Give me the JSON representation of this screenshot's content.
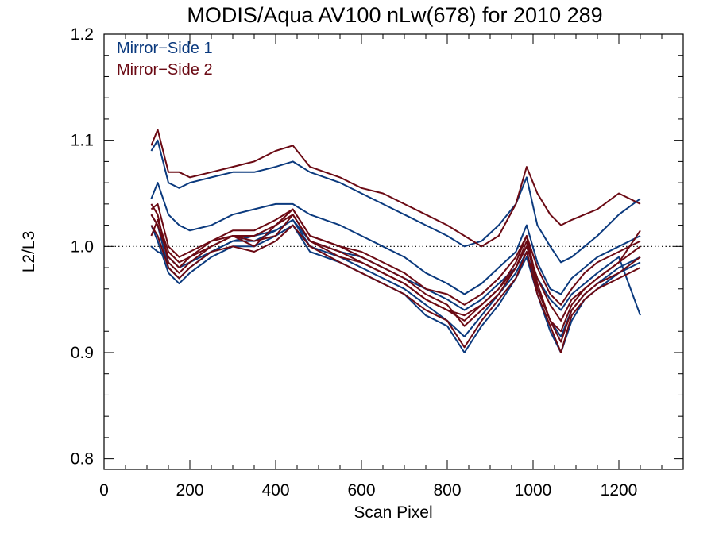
{
  "chart_data": {
    "type": "line",
    "title": "MODIS/Aqua AV100 nLw(678) for 2010 289",
    "xlabel": "Scan Pixel",
    "ylabel": "L2/L3",
    "xlim": [
      0,
      1350
    ],
    "ylim": [
      0.79,
      1.2
    ],
    "x_ticks": [
      {
        "v": 0,
        "label": "0"
      },
      {
        "v": 200,
        "label": "200"
      },
      {
        "v": 400,
        "label": "400"
      },
      {
        "v": 600,
        "label": "600"
      },
      {
        "v": 800,
        "label": "800"
      },
      {
        "v": 1000,
        "label": "1000"
      },
      {
        "v": 1200,
        "label": "1200"
      }
    ],
    "y_ticks": [
      {
        "v": 0.8,
        "label": "0.8"
      },
      {
        "v": 0.9,
        "label": "0.9"
      },
      {
        "v": 1.0,
        "label": "1.0"
      },
      {
        "v": 1.1,
        "label": "1.1"
      },
      {
        "v": 1.2,
        "label": "1.2"
      }
    ],
    "reference_line": {
      "y": 1.0,
      "style": "dotted"
    },
    "legend_position": "top-left",
    "x": [
      110,
      125,
      150,
      175,
      200,
      250,
      300,
      350,
      400,
      440,
      480,
      550,
      600,
      650,
      700,
      750,
      800,
      840,
      880,
      920,
      960,
      985,
      1010,
      1040,
      1065,
      1090,
      1120,
      1150,
      1200,
      1250
    ],
    "series": [
      {
        "name": "Mirror−Side 1",
        "color": "#0b3a7e",
        "lines": [
          [
            1.09,
            1.1,
            1.06,
            1.055,
            1.06,
            1.065,
            1.07,
            1.07,
            1.075,
            1.08,
            1.07,
            1.06,
            1.05,
            1.04,
            1.03,
            1.02,
            1.01,
            1.0,
            1.005,
            1.02,
            1.04,
            1.065,
            1.02,
            1.0,
            0.985,
            0.99,
            1.0,
            1.01,
            1.03,
            1.045
          ],
          [
            1.045,
            1.06,
            1.03,
            1.02,
            1.015,
            1.02,
            1.03,
            1.035,
            1.04,
            1.04,
            1.03,
            1.02,
            1.01,
            1.0,
            0.99,
            0.975,
            0.965,
            0.955,
            0.965,
            0.98,
            0.995,
            1.02,
            0.985,
            0.96,
            0.955,
            0.97,
            0.98,
            0.99,
            1.0,
            1.01
          ],
          [
            1.03,
            1.02,
            0.98,
            0.97,
            0.98,
            0.995,
            1.005,
            1.005,
            1.015,
            1.025,
            1.0,
            0.99,
            0.98,
            0.97,
            0.96,
            0.945,
            0.93,
            0.915,
            0.935,
            0.955,
            0.975,
            0.995,
            0.96,
            0.93,
            0.915,
            0.94,
            0.955,
            0.965,
            0.98,
            0.99
          ],
          [
            1.02,
            1.005,
            0.975,
            0.965,
            0.975,
            0.99,
            1.0,
            1.0,
            1.01,
            1.02,
            0.995,
            0.985,
            0.975,
            0.965,
            0.955,
            0.935,
            0.925,
            0.9,
            0.925,
            0.945,
            0.97,
            0.99,
            0.955,
            0.92,
            0.9,
            0.93,
            0.95,
            0.96,
            0.975,
            0.985
          ],
          [
            1.0,
            0.995,
            0.99,
            0.98,
            0.985,
            0.995,
            1.005,
            1.01,
            1.015,
            1.025,
            1.005,
            0.995,
            0.99,
            0.98,
            0.97,
            0.96,
            0.95,
            0.94,
            0.95,
            0.965,
            0.98,
            1.0,
            0.97,
            0.95,
            0.94,
            0.955,
            0.965,
            0.975,
            0.99,
            0.935
          ]
        ]
      },
      {
        "name": "Mirror−Side 2",
        "color": "#6b0a14",
        "lines": [
          [
            1.095,
            1.11,
            1.07,
            1.07,
            1.065,
            1.07,
            1.075,
            1.08,
            1.09,
            1.095,
            1.075,
            1.065,
            1.055,
            1.05,
            1.04,
            1.03,
            1.02,
            1.01,
            1.0,
            1.01,
            1.04,
            1.075,
            1.05,
            1.03,
            1.02,
            1.025,
            1.03,
            1.035,
            1.05,
            1.04
          ],
          [
            1.04,
            1.03,
            0.985,
            0.975,
            0.985,
            1.0,
            1.01,
            1.005,
            1.01,
            1.03,
            1.005,
            0.99,
            0.985,
            0.975,
            0.965,
            0.95,
            0.94,
            0.935,
            0.945,
            0.96,
            0.985,
            1.01,
            0.965,
            0.93,
            0.92,
            0.945,
            0.96,
            0.97,
            0.985,
            1.0
          ],
          [
            1.03,
            1.02,
            0.99,
            0.98,
            0.99,
            1.005,
            1.01,
            1.0,
            1.02,
            1.035,
            1.01,
            1.0,
            0.99,
            0.98,
            0.97,
            0.955,
            0.945,
            0.925,
            0.94,
            0.955,
            0.98,
            1.005,
            0.96,
            0.93,
            0.91,
            0.94,
            0.955,
            0.965,
            0.975,
            0.99
          ],
          [
            1.02,
            1.01,
            0.98,
            0.97,
            0.98,
            0.995,
            1.0,
            0.995,
            1.005,
            1.02,
            1.0,
            0.985,
            0.975,
            0.965,
            0.955,
            0.94,
            0.93,
            0.905,
            0.93,
            0.95,
            0.97,
            0.995,
            0.955,
            0.925,
            0.9,
            0.935,
            0.95,
            0.96,
            0.97,
            0.98
          ],
          [
            1.01,
            1.025,
            0.995,
            0.985,
            0.99,
            1.0,
            1.01,
            1.01,
            1.02,
            1.03,
            1.005,
            0.995,
            0.985,
            0.975,
            0.965,
            0.95,
            0.94,
            0.93,
            0.945,
            0.96,
            0.98,
            1.0,
            0.97,
            0.945,
            0.93,
            0.95,
            0.96,
            0.97,
            0.985,
            1.015
          ],
          [
            1.035,
            1.04,
            1.0,
            0.99,
            0.995,
            1.005,
            1.015,
            1.015,
            1.025,
            1.035,
            1.01,
            1.0,
            0.995,
            0.985,
            0.975,
            0.96,
            0.955,
            0.945,
            0.955,
            0.97,
            0.99,
            1.01,
            0.98,
            0.955,
            0.945,
            0.96,
            0.975,
            0.985,
            0.995,
            1.005
          ]
        ]
      }
    ]
  }
}
